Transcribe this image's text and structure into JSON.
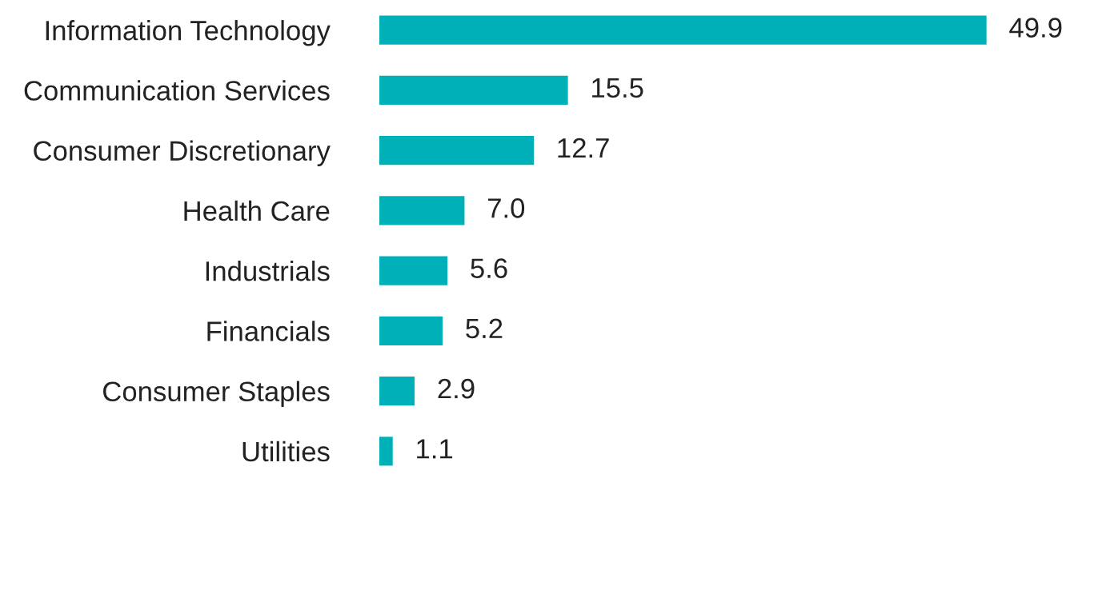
{
  "chart_data": {
    "type": "bar",
    "orientation": "horizontal",
    "categories": [
      "Information Technology",
      "Communication Services",
      "Consumer Discretionary",
      "Health Care",
      "Industrials",
      "Financials",
      "Consumer Staples",
      "Utilities"
    ],
    "values": [
      49.9,
      15.5,
      12.7,
      7.0,
      5.6,
      5.2,
      2.9,
      1.1
    ],
    "value_labels": [
      "49.9",
      "15.5",
      "12.7",
      "7.0",
      "5.6",
      "5.2",
      "2.9",
      "1.1"
    ],
    "color": "#00b0b9",
    "grid": false,
    "legend": false,
    "tick_labels": "y"
  }
}
